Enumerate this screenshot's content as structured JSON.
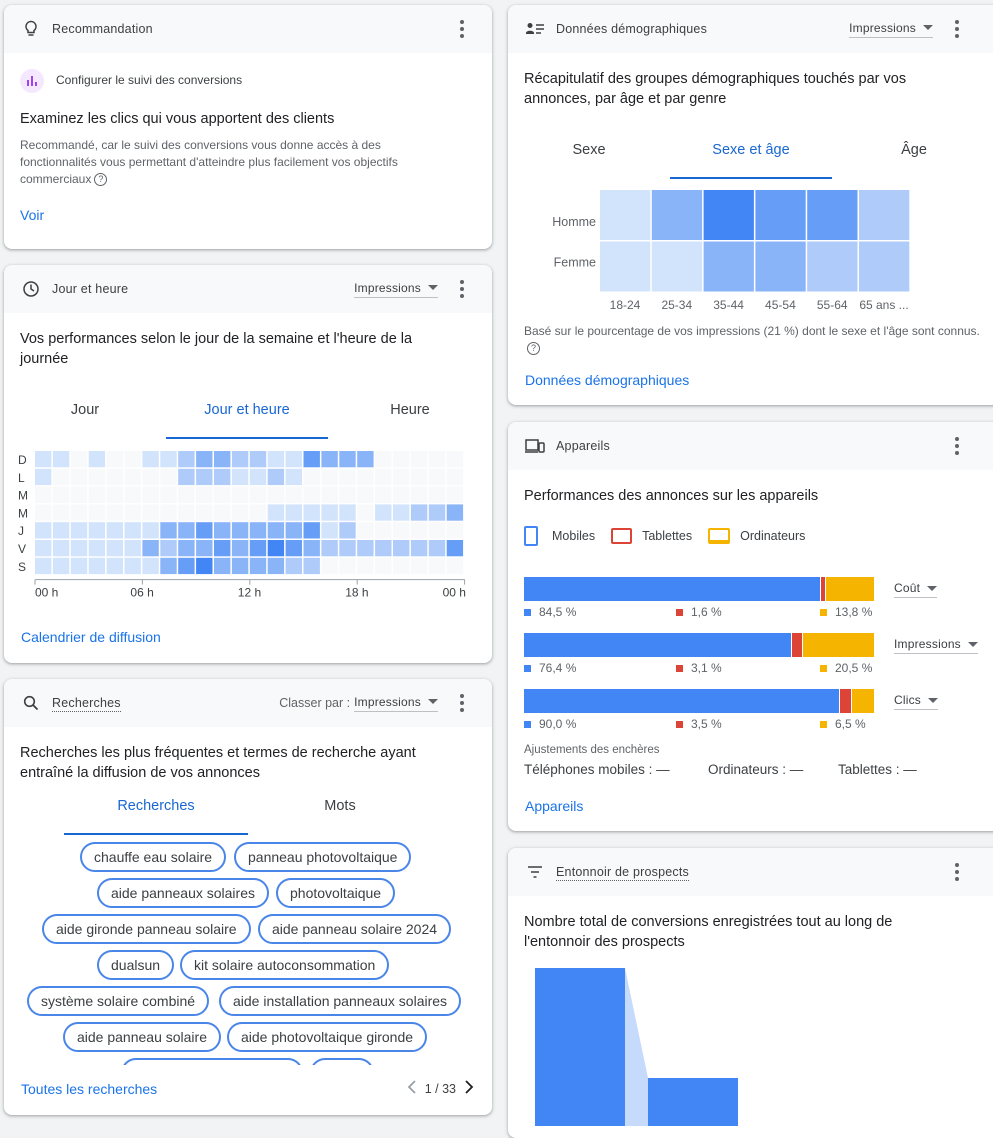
{
  "recommendation": {
    "header": "Recommandation",
    "sub_label": "Configurer le suivi des conversions",
    "title": "Examinez les clics qui vous apportent des clients",
    "desc": "Recommandé, car le suivi des conversions vous donne accès à des fonctionnalités vous permettant d'atteindre plus facilement vos objectifs commerciaux",
    "link": "Voir"
  },
  "day_hour": {
    "header": "Jour et heure",
    "metric": "Impressions",
    "title": "Vos performances selon le jour de la semaine et l'heure de la journée",
    "tabs": [
      "Jour",
      "Jour et heure",
      "Heure"
    ],
    "active_tab": 1,
    "day_labels": [
      "D",
      "L",
      "M",
      "M",
      "J",
      "V",
      "S"
    ],
    "hour_ticks": [
      "00 h",
      "06 h",
      "12 h",
      "18 h",
      "00 h"
    ],
    "grid": [
      [
        1,
        1,
        0,
        1,
        0,
        0,
        1,
        1,
        2,
        3,
        3,
        2,
        2,
        1,
        1,
        4,
        3,
        3,
        3,
        0,
        0,
        0,
        0,
        0
      ],
      [
        1,
        0,
        0,
        0,
        0,
        0,
        0,
        0,
        2,
        2,
        2,
        1,
        1,
        2,
        1,
        0,
        0,
        0,
        0,
        0,
        0,
        0,
        0,
        0
      ],
      [
        0,
        0,
        0,
        0,
        0,
        0,
        0,
        0,
        0,
        0,
        0,
        0,
        0,
        0,
        0,
        0,
        0,
        0,
        0,
        0,
        0,
        0,
        0,
        0
      ],
      [
        0,
        0,
        0,
        0,
        0,
        0,
        0,
        0,
        0,
        0,
        0,
        0,
        0,
        1,
        1,
        1,
        1,
        1,
        0,
        1,
        1,
        2,
        2,
        3
      ],
      [
        1,
        1,
        1,
        1,
        1,
        1,
        1,
        3,
        3,
        4,
        3,
        3,
        3,
        3,
        3,
        4,
        1,
        2,
        0,
        0,
        0,
        0,
        0,
        0
      ],
      [
        1,
        1,
        1,
        1,
        1,
        1,
        3,
        2,
        3,
        3,
        4,
        3,
        4,
        5,
        4,
        3,
        2,
        2,
        2,
        2,
        2,
        2,
        2,
        4
      ],
      [
        1,
        1,
        1,
        1,
        1,
        1,
        1,
        3,
        4,
        5,
        3,
        3,
        3,
        3,
        2,
        2,
        0,
        0,
        0,
        0,
        0,
        0,
        0,
        0
      ]
    ],
    "link": "Calendrier de diffusion"
  },
  "searches": {
    "header": "Recherches",
    "sort_label": "Classer par :",
    "metric": "Impressions",
    "title": "Recherches les plus fréquentes et termes de recherche ayant entraîné la diffusion de vos annonces",
    "tabs": [
      "Recherches",
      "Mots"
    ],
    "active_tab": 0,
    "chips": [
      "chauffe eau solaire",
      "panneau photovoltaique",
      "aide panneaux solaires",
      "photovoltaique",
      "aide gironde panneau solaire",
      "aide panneau solaire 2024",
      "dualsun",
      "kit solaire autoconsommation",
      "système solaire combiné",
      "aide installation panneaux solaires",
      "aide panneau solaire",
      "aide photovoltaique gironde"
    ],
    "link": "Toutes les recherches",
    "pagination": "1 / 33"
  },
  "demographics": {
    "header": "Données démographiques",
    "metric": "Impressions",
    "title": "Récapitulatif des groupes démographiques touchés par vos annonces, par âge et par genre",
    "tabs": [
      "Sexe",
      "Sexe et âge",
      "Âge"
    ],
    "active_tab": 1,
    "rows": [
      "Homme",
      "Femme"
    ],
    "cols": [
      "18-24",
      "25-34",
      "35-44",
      "45-54",
      "55-64",
      "65 ans ..."
    ],
    "grid": [
      [
        1,
        3,
        5,
        4,
        4,
        2
      ],
      [
        1,
        1,
        3,
        3,
        2,
        2
      ]
    ],
    "note": "Basé sur le pourcentage de vos impressions (21 %) dont le sexe et l'âge sont connus.",
    "link": "Données démographiques"
  },
  "devices": {
    "header": "Appareils",
    "title": "Performances des annonces sur les appareils",
    "legend": [
      "Mobiles",
      "Tablettes",
      "Ordinateurs"
    ],
    "colors": {
      "mobile": "#4285f4",
      "tablet": "#db4437",
      "desktop": "#f4b400"
    },
    "bars": [
      {
        "metric": "Coût",
        "values": [
          84.5,
          1.6,
          13.8
        ],
        "labels": [
          "84,5 %",
          "1,6 %",
          "13,8 %"
        ]
      },
      {
        "metric": "Impressions",
        "values": [
          76.4,
          3.1,
          20.5
        ],
        "labels": [
          "76,4 %",
          "3,1 %",
          "20,5 %"
        ]
      },
      {
        "metric": "Clics",
        "values": [
          90.0,
          3.5,
          6.5
        ],
        "labels": [
          "90,0 %",
          "3,5 %",
          "6,5 %"
        ]
      }
    ],
    "adjust_title": "Ajustements des enchères",
    "adjust": [
      "Téléphones mobiles : —",
      "Ordinateurs : —",
      "Tablettes : —"
    ],
    "link": "Appareils"
  },
  "funnel": {
    "header": "Entonnoir de prospects",
    "title": "Nombre total de conversions enregistrées tout au long de l'entonnoir des prospects"
  }
}
